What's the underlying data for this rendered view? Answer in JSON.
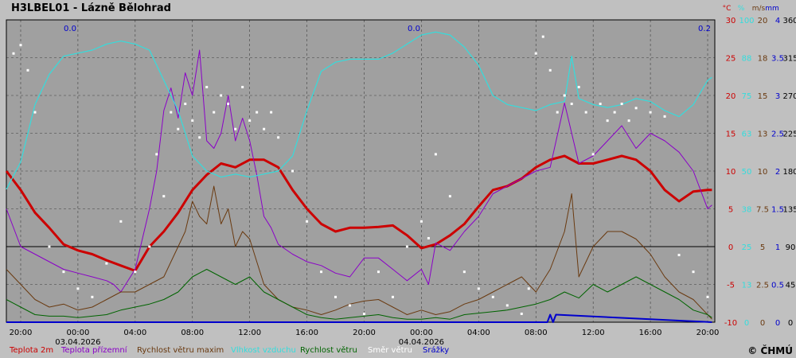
{
  "title": "H3LBEL01 - Lázně Bělohrad",
  "copyright": "© ČHMÚ",
  "colors": {
    "temp": "#cc0000",
    "ground": "#8a00c8",
    "gust": "#6a3a10",
    "humidity": "#33dddd",
    "wind": "#006400",
    "direction": "#ffffff",
    "precip": "#0000cc",
    "plot_bg": "#a0a0a0",
    "page_bg": "#c0c0c0"
  },
  "legend": [
    {
      "key": "temp",
      "label": "Teplota 2m"
    },
    {
      "key": "ground",
      "label": "Teplota přízemní"
    },
    {
      "key": "gust",
      "label": "Rychlost větru maxim"
    },
    {
      "key": "humidity",
      "label": "Vlhkost vzduchu"
    },
    {
      "key": "wind",
      "label": "Rychlost větru"
    },
    {
      "key": "direction",
      "label": "Směr  větru"
    },
    {
      "key": "precip",
      "label": "Srážky"
    }
  ],
  "precip_labels": [
    "0.0",
    "0.0",
    "0.2"
  ],
  "chart_data": {
    "type": "line",
    "x_tick_labels": [
      "20:00",
      "00:00",
      "04:00",
      "08:00",
      "12:00",
      "16:00",
      "20:00",
      "00:00",
      "04:00",
      "08:00",
      "12:00",
      "16:00",
      "20:00"
    ],
    "date_labels": [
      "03.04.2026",
      "04.04.2026"
    ],
    "x_range_hours": [
      -1,
      48.5
    ],
    "axes": [
      {
        "key": "temp",
        "unit": "°C",
        "ticks": [
          "30",
          "25",
          "20",
          "15",
          "10",
          "5",
          "0",
          "-5",
          "-10"
        ]
      },
      {
        "key": "humidity",
        "unit": "%",
        "ticks": [
          "100",
          "88",
          "75",
          "63",
          "50",
          "38",
          "25",
          "13",
          "0"
        ]
      },
      {
        "key": "wind",
        "unit": "m/s",
        "ticks": [
          "20",
          "18",
          "15",
          "13",
          "10",
          "7.5",
          "5",
          "2.5",
          "0"
        ]
      },
      {
        "key": "precip",
        "unit": "mm",
        "ticks": [
          "4",
          "3.5",
          "3",
          "2.5",
          "2",
          "1.5",
          "1",
          "0.5",
          "0"
        ]
      },
      {
        "key": "direction",
        "unit": "",
        "ticks": [
          "360",
          "315",
          "270",
          "225",
          "180",
          "135",
          "90",
          "45",
          "0"
        ]
      }
    ],
    "ylim_temp": [
      -10,
      30
    ],
    "grid": true,
    "series": [
      {
        "key": "temp",
        "name": "Teplota 2m",
        "x": [
          -1,
          0,
          1,
          2,
          3,
          4,
          5,
          6,
          7,
          8,
          9,
          10,
          11,
          12,
          13,
          14,
          15,
          16,
          17,
          18,
          19,
          20,
          21,
          22,
          23,
          24,
          25,
          26,
          27,
          28,
          29,
          30,
          31,
          32,
          33,
          34,
          35,
          36,
          37,
          38,
          39,
          40,
          41,
          42,
          43,
          44,
          45,
          46,
          47,
          48,
          48.3
        ],
        "values": [
          10,
          7.5,
          4.5,
          2.5,
          0.3,
          -0.5,
          -1,
          -1.8,
          -2.5,
          -3.2,
          0,
          2,
          4.5,
          7.5,
          9.5,
          11,
          10.5,
          11.5,
          11.5,
          10.5,
          7.5,
          5,
          3,
          2,
          2.5,
          2.5,
          2.6,
          2.8,
          1.5,
          -0.2,
          0.3,
          1.5,
          3,
          5.3,
          7.5,
          8,
          9,
          10.5,
          11.5,
          12,
          11,
          11,
          11.5,
          12,
          11.5,
          10,
          7.5,
          6,
          7.3,
          7.5,
          7.5
        ]
      },
      {
        "key": "ground",
        "name": "Teplota přízemní",
        "x": [
          -1,
          0,
          1,
          2,
          3,
          4,
          5,
          6,
          6.5,
          7,
          8,
          9,
          9.5,
          10,
          10.5,
          11,
          11.5,
          12,
          12.5,
          13,
          13.5,
          14,
          14.5,
          15,
          15.5,
          16,
          16.5,
          17,
          17.5,
          18,
          19,
          20,
          21,
          22,
          23,
          24,
          25,
          26,
          27,
          28,
          28.5,
          29,
          30,
          31,
          32,
          33,
          34,
          35,
          36,
          37,
          38,
          39,
          40,
          41,
          42,
          43,
          44,
          45,
          46,
          47,
          48,
          48.3
        ],
        "values": [
          5,
          0,
          -1,
          -2,
          -3,
          -3.5,
          -4,
          -4.5,
          -5,
          -6,
          -3,
          5,
          10,
          18,
          21,
          17,
          23,
          20,
          26,
          14,
          13,
          15,
          20,
          14,
          17,
          14,
          9.5,
          4,
          2.5,
          0.3,
          -1,
          -2,
          -2.5,
          -3.5,
          -4,
          -1.5,
          -1.5,
          -3,
          -4.5,
          -3,
          -5,
          0.5,
          -0.5,
          2,
          4,
          7,
          8,
          9,
          10,
          10.5,
          19,
          11,
          12,
          14,
          16,
          13,
          15,
          14,
          12.5,
          10,
          5,
          5.5
        ]
      },
      {
        "key": "humidity",
        "name": "Vlhkost vzduchu",
        "x": [
          -1,
          0,
          1,
          2,
          3,
          4,
          5,
          6,
          7,
          8,
          9,
          10,
          11,
          12,
          13,
          14,
          15,
          16,
          17,
          18,
          19,
          20,
          21,
          22,
          23,
          24,
          25,
          26,
          27,
          28,
          29,
          30,
          31,
          32,
          33,
          34,
          35,
          36,
          37,
          38,
          38.5,
          39,
          40,
          41,
          42,
          43,
          44,
          45,
          46,
          47,
          48,
          48.3
        ],
        "values": [
          44,
          53,
          72,
          82,
          88,
          89,
          90,
          92,
          93,
          92,
          90,
          80,
          70,
          55,
          50,
          48,
          49,
          48,
          49,
          50,
          55,
          70,
          83,
          86,
          87,
          87,
          87,
          89,
          92,
          95,
          96,
          95,
          91,
          85,
          75,
          72,
          71,
          70,
          72,
          73,
          88,
          74,
          72,
          71,
          72,
          74,
          73,
          70,
          68,
          72,
          80,
          81
        ]
      },
      {
        "key": "gust",
        "name": "Rychlost větru maxim",
        "x": [
          -1,
          0,
          1,
          2,
          3,
          4,
          5,
          6,
          7,
          8,
          9,
          10,
          11,
          11.5,
          12,
          12.5,
          13,
          13.5,
          14,
          14.5,
          15,
          15.5,
          16,
          16.5,
          17,
          18,
          19,
          20,
          21,
          22,
          23,
          24,
          25,
          26,
          27,
          28,
          29,
          30,
          31,
          32,
          33,
          34,
          35,
          36,
          37,
          38,
          38.5,
          39,
          40,
          41,
          42,
          43,
          44,
          45,
          46,
          47,
          48,
          48.3
        ],
        "values": [
          3.5,
          2.5,
          1.5,
          1,
          1.2,
          0.8,
          1,
          1.5,
          2,
          2,
          2.5,
          3,
          5,
          6,
          8,
          7,
          6.5,
          9,
          6.5,
          7.5,
          5,
          6,
          5.5,
          4,
          2.5,
          1.5,
          1,
          0.8,
          0.5,
          0.8,
          1.2,
          1.4,
          1.5,
          1,
          0.5,
          0.8,
          0.5,
          0.7,
          1.2,
          1.5,
          2,
          2.5,
          3,
          2,
          3.5,
          6,
          8.5,
          3,
          5,
          6,
          6,
          5.5,
          4.5,
          3,
          2,
          1.5,
          0.5,
          0.2
        ]
      },
      {
        "key": "wind",
        "name": "Rychlost větru",
        "x": [
          -1,
          0,
          1,
          2,
          3,
          4,
          5,
          6,
          7,
          8,
          9,
          10,
          11,
          12,
          13,
          14,
          15,
          16,
          17,
          18,
          19,
          20,
          21,
          22,
          23,
          24,
          25,
          26,
          27,
          28,
          29,
          30,
          31,
          32,
          33,
          34,
          35,
          36,
          37,
          38,
          39,
          40,
          41,
          42,
          43,
          44,
          45,
          46,
          47,
          48,
          48.3
        ],
        "values": [
          1.5,
          1,
          0.5,
          0.4,
          0.4,
          0.3,
          0.4,
          0.5,
          0.8,
          1,
          1.2,
          1.5,
          2,
          3,
          3.5,
          3,
          2.5,
          3,
          2,
          1.5,
          1,
          0.5,
          0.3,
          0.2,
          0.3,
          0.4,
          0.5,
          0.3,
          0.2,
          0.2,
          0.3,
          0.2,
          0.5,
          0.6,
          0.7,
          0.8,
          1,
          1.2,
          1.5,
          2,
          1.6,
          2.5,
          2,
          2.5,
          3,
          2.5,
          2,
          1.5,
          0.8,
          0.5,
          0.3
        ]
      },
      {
        "key": "precip",
        "name": "Srážky",
        "x": [
          -1,
          36.8,
          37,
          37.2,
          37.4,
          48.3
        ],
        "values": [
          0,
          0,
          0.1,
          0,
          0.1,
          0
        ]
      },
      {
        "key": "direction",
        "name": "Směr  větru",
        "type": "scatter",
        "x": [
          -0.5,
          0,
          0.5,
          1,
          2,
          3,
          4,
          5,
          6,
          7,
          8,
          9,
          9.5,
          10,
          10.5,
          11,
          11.5,
          12,
          12.5,
          13,
          13.5,
          14,
          14.5,
          15,
          15.5,
          16,
          16.5,
          17,
          17.5,
          18,
          19,
          20,
          21,
          22,
          23,
          24,
          25,
          26,
          27,
          28,
          28.5,
          29,
          30,
          31,
          32,
          33,
          34,
          35,
          35.5,
          36,
          36.5,
          37,
          37.5,
          38,
          38.5,
          39,
          39.5,
          40,
          40.5,
          41,
          41.5,
          42,
          42.5,
          43,
          44,
          45,
          46,
          47,
          48
        ],
        "values": [
          320,
          330,
          300,
          250,
          90,
          60,
          40,
          30,
          70,
          120,
          60,
          90,
          200,
          150,
          250,
          230,
          260,
          240,
          220,
          280,
          250,
          270,
          260,
          230,
          280,
          240,
          250,
          230,
          250,
          220,
          180,
          120,
          60,
          30,
          20,
          10,
          60,
          30,
          90,
          120,
          100,
          200,
          150,
          60,
          40,
          30,
          20,
          10,
          40,
          320,
          340,
          300,
          250,
          270,
          260,
          280,
          250,
          200,
          260,
          240,
          250,
          260,
          240,
          255,
          250,
          245,
          80,
          60,
          30
        ]
      }
    ]
  }
}
